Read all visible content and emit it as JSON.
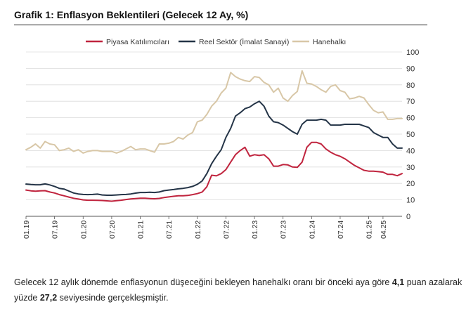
{
  "title": "Grafik 1: Enflasyon Beklentileri (Gelecek 12 Ay, %)",
  "caption": {
    "line1_a": "Gelecek 12 aylık dönemde enflasyonun düşeceğini bekleyen hanehalkı oranı bir önceki aya göre ",
    "line1_b": "4,1",
    "line1_c": " puan azalarak",
    "line2_a": "yüzde ",
    "line2_b": "27,2",
    "line2_c": " seviyesinde gerçekleşmiştir."
  },
  "chart_data": {
    "type": "line",
    "title": "Grafik 1: Enflasyon Beklentileri (Gelecek 12 Ay, %)",
    "xlabel": "",
    "ylabel": "",
    "ylim": [
      0,
      100
    ],
    "yticks": [
      "0",
      "10",
      "20",
      "30",
      "40",
      "50",
      "60",
      "70",
      "80",
      "90",
      "100"
    ],
    "xticks": [
      "01.19",
      "07.19",
      "01.20",
      "07.20",
      "01.21",
      "07.21",
      "01.22",
      "07.22",
      "01.23",
      "07.23",
      "01.24",
      "07.24",
      "01.25",
      "04.25"
    ],
    "grid": true,
    "legend_position": "top",
    "x_start": "01.19",
    "x_end": "04.25",
    "series": [
      {
        "name": "Piyasa Katılımcıları",
        "color": "#c0243e",
        "values": [
          16.0,
          15.5,
          15.3,
          15.5,
          15.6,
          14.8,
          14.2,
          13.2,
          12.5,
          11.7,
          11.0,
          10.5,
          10.0,
          9.8,
          9.8,
          9.7,
          9.6,
          9.4,
          9.2,
          9.5,
          9.8,
          10.2,
          10.6,
          10.8,
          11.0,
          11.0,
          10.8,
          10.7,
          10.9,
          11.4,
          11.8,
          12.2,
          12.5,
          12.5,
          12.7,
          13.2,
          13.8,
          14.8,
          18.0,
          25.0,
          24.6,
          26.0,
          28.4,
          33.0,
          37.5,
          40.0,
          42.0,
          36.6,
          37.5,
          37.0,
          37.5,
          35.0,
          30.5,
          30.5,
          31.5,
          31.3,
          30.0,
          29.8,
          33.0,
          42.0,
          45.0,
          45.0,
          44.0,
          41.0,
          39.0,
          37.5,
          36.5,
          35.0,
          33.0,
          31.0,
          29.5,
          28.0,
          27.5,
          27.5,
          27.2,
          26.9,
          25.5,
          25.5,
          24.7,
          26.0
        ]
      },
      {
        "name": "Reel Sektör (İmalat Sanayi)",
        "color": "#243447",
        "values": [
          19.6,
          19.3,
          19.2,
          19.2,
          19.7,
          19.1,
          18.2,
          17.0,
          16.6,
          15.4,
          14.2,
          13.6,
          13.3,
          13.2,
          13.3,
          13.5,
          13.0,
          12.8,
          12.8,
          13.0,
          13.2,
          13.3,
          13.6,
          14.1,
          14.5,
          14.5,
          14.6,
          14.5,
          14.8,
          15.6,
          16.0,
          16.3,
          16.7,
          17.0,
          17.5,
          18.2,
          19.5,
          21.5,
          26.0,
          32.0,
          36.5,
          40.5,
          48.0,
          53.5,
          61.0,
          63.0,
          65.5,
          66.5,
          68.5,
          70.0,
          67.0,
          61.0,
          57.5,
          57.0,
          55.5,
          53.5,
          51.5,
          50.0,
          56.0,
          58.5,
          58.5,
          58.5,
          59.0,
          58.5,
          55.5,
          55.5,
          55.5,
          56.0,
          56.0,
          56.0,
          56.0,
          55.0,
          54.0,
          51.0,
          49.5,
          48.0,
          48.0,
          44.0,
          41.5,
          41.5
        ]
      },
      {
        "name": "Hanehalkı",
        "color": "#d8c7a7",
        "values": [
          40.5,
          42.0,
          44.0,
          41.5,
          45.5,
          44.0,
          43.5,
          40.0,
          40.5,
          41.5,
          39.5,
          40.5,
          38.5,
          39.5,
          40.0,
          40.0,
          39.5,
          39.5,
          39.5,
          38.5,
          39.5,
          41.0,
          42.5,
          40.5,
          41.0,
          41.0,
          40.0,
          39.0,
          44.0,
          44.0,
          44.5,
          45.5,
          48.0,
          47.0,
          49.5,
          51.0,
          57.5,
          58.5,
          62.0,
          67.0,
          70.0,
          75.0,
          78.0,
          87.5,
          85.0,
          83.5,
          82.5,
          82.0,
          85.0,
          84.5,
          81.5,
          80.0,
          75.5,
          78.0,
          72.0,
          70.0,
          73.5,
          76.0,
          88.5,
          81.0,
          80.5,
          79.0,
          77.0,
          75.5,
          79.0,
          80.0,
          76.5,
          75.5,
          71.5,
          72.0,
          73.0,
          72.0,
          68.0,
          64.5,
          63.0,
          63.5,
          59.0,
          59.0,
          59.5,
          59.5
        ]
      }
    ]
  }
}
